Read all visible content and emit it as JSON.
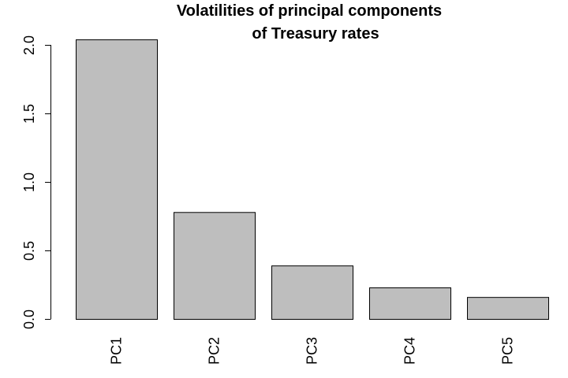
{
  "chart_data": {
    "type": "bar",
    "title": [
      "Volatilities of principal components",
      "of Treasury rates"
    ],
    "xlabel": "",
    "ylabel": "",
    "categories": [
      "PC1",
      "PC2",
      "PC3",
      "PC4",
      "PC5"
    ],
    "values": [
      2.04,
      0.78,
      0.39,
      0.23,
      0.16
    ],
    "ylim": [
      0,
      2.0
    ],
    "yticks": [
      0.0,
      0.5,
      1.0,
      1.5,
      2.0
    ],
    "ytick_labels": [
      "0.0",
      "0.5",
      "1.0",
      "1.5",
      "2.0"
    ],
    "grid": false,
    "legend": "none",
    "colors": {
      "bar_fill": "#bebebe",
      "bar_stroke": "#000000",
      "axis": "#000000",
      "text": "#000000",
      "background": "#ffffff"
    }
  }
}
